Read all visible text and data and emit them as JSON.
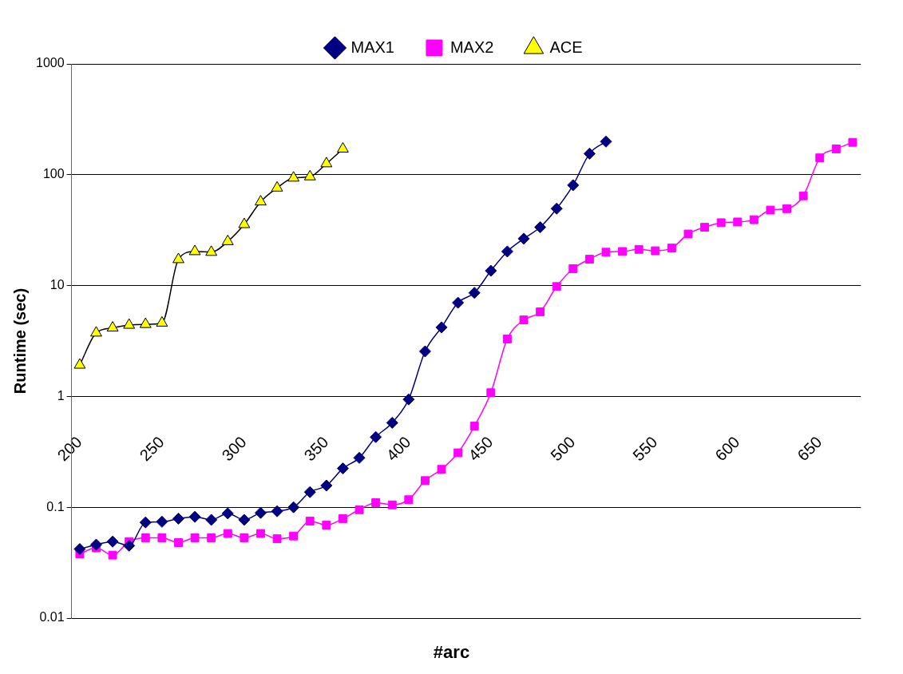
{
  "chart_data": {
    "type": "line",
    "xlabel": "#arc",
    "ylabel": "Runtime (sec)",
    "categories": [
      "200",
      null,
      null,
      null,
      null,
      "250",
      null,
      null,
      null,
      null,
      "300",
      null,
      null,
      null,
      null,
      "350",
      null,
      null,
      null,
      null,
      "400",
      null,
      null,
      null,
      null,
      "450",
      null,
      null,
      null,
      null,
      "500",
      null,
      null,
      null,
      null,
      "550",
      null,
      null,
      null,
      null,
      "600",
      null,
      null,
      null,
      null,
      "650",
      null,
      null
    ],
    "series": [
      {
        "name": "MAX1",
        "color": "#000080",
        "marker": "diamond",
        "values": [
          0.042,
          0.046,
          0.049,
          0.045,
          0.073,
          0.074,
          0.079,
          0.082,
          0.077,
          0.088,
          0.077,
          0.089,
          0.092,
          0.1,
          0.137,
          0.157,
          0.224,
          0.279,
          0.43,
          0.578,
          0.94,
          2.55,
          4.2,
          7,
          8.6,
          13.6,
          20.3,
          26.5,
          33.6,
          49.4,
          80.5,
          155,
          199,
          null,
          null,
          null,
          null,
          null,
          null,
          null,
          null,
          null,
          null,
          null,
          null,
          null,
          null,
          null
        ]
      },
      {
        "name": "MAX2",
        "color": "#ff00ff",
        "marker": "square",
        "values": [
          0.038,
          0.043,
          0.037,
          0.049,
          0.053,
          0.053,
          0.048,
          0.053,
          0.053,
          0.058,
          0.053,
          0.058,
          0.052,
          0.055,
          0.075,
          0.069,
          0.079,
          0.095,
          0.11,
          0.105,
          0.117,
          0.174,
          0.22,
          0.31,
          0.54,
          1.08,
          3.3,
          4.9,
          5.8,
          9.8,
          14.2,
          17.3,
          20,
          20.3,
          21.2,
          20.6,
          21.8,
          29.2,
          33.6,
          36.9,
          37.5,
          39.3,
          48,
          49.4,
          64.5,
          142,
          171,
          196
        ]
      },
      {
        "name": "ACE",
        "color": "#ffff00",
        "marker": "triangle",
        "values": [
          1.92,
          3.74,
          4.15,
          4.4,
          4.47,
          4.6,
          17.2,
          20.3,
          20,
          25,
          35.6,
          57,
          76,
          93.5,
          96,
          126,
          171,
          null,
          null,
          null,
          null,
          null,
          null,
          null,
          null,
          null,
          null,
          null,
          null,
          null,
          null,
          null,
          null,
          null,
          null,
          null,
          null,
          null,
          null,
          null,
          null,
          null,
          null,
          null,
          null,
          null,
          null,
          null
        ]
      }
    ],
    "log": "y",
    "ylim": [
      0.01,
      1000
    ],
    "yticks": [
      0.01,
      0.1,
      1,
      10,
      100,
      1000
    ],
    "grid": "y",
    "legend": "top"
  }
}
